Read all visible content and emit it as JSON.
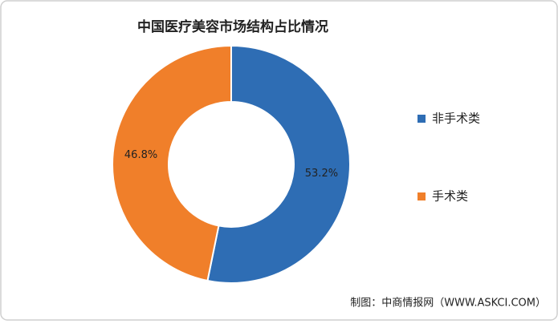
{
  "chart_data": {
    "type": "donut",
    "title": "中国医疗美容市场结构占比情况",
    "categories": [
      "非手术类",
      "手术类"
    ],
    "values": [
      53.2,
      46.8
    ],
    "value_labels": [
      "53.2%",
      "46.8%"
    ],
    "colors": [
      "#2e6db4",
      "#f07f2a"
    ],
    "legend": "right",
    "source": "制图：中商情报网（WWW.ASKCI.COM）"
  }
}
